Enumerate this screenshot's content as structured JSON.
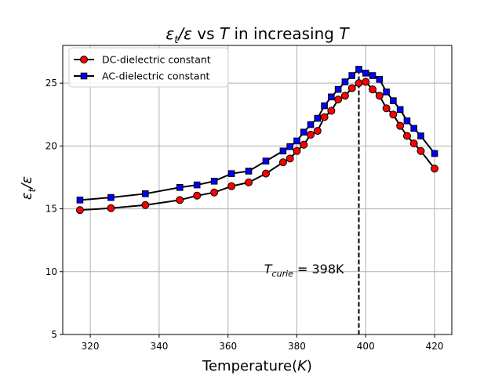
{
  "chart_data": {
    "type": "line",
    "title": "εt/ε vs T in increasing T",
    "xlabel": "Temperature(K)",
    "ylabel": "εt/ε",
    "xlim": [
      312,
      425
    ],
    "ylim": [
      5,
      28
    ],
    "grid": true,
    "legend_position": "top-left",
    "x_ticks": [
      320,
      340,
      360,
      380,
      400,
      420
    ],
    "y_ticks": [
      5,
      10,
      15,
      20,
      25
    ],
    "series": [
      {
        "name": "DC-dielectric constant",
        "color": "#ff0000",
        "marker": "circle",
        "x": [
          317,
          326,
          336,
          346,
          351,
          356,
          361,
          366,
          371,
          376,
          378,
          380,
          382,
          384,
          386,
          388,
          390,
          392,
          394,
          396,
          398,
          400,
          402,
          404,
          406,
          408,
          410,
          412,
          414,
          416,
          420
        ],
        "y": [
          14.9,
          15.05,
          15.3,
          15.7,
          16.05,
          16.3,
          16.8,
          17.1,
          17.8,
          18.7,
          19.0,
          19.6,
          20.1,
          20.9,
          21.2,
          22.3,
          22.8,
          23.7,
          24.0,
          24.6,
          25.0,
          25.1,
          24.5,
          24.0,
          23.0,
          22.5,
          21.6,
          20.8,
          20.2,
          19.6,
          18.2
        ]
      },
      {
        "name": "AC-dielectric constant",
        "color": "#0000ff",
        "marker": "square",
        "x": [
          317,
          326,
          336,
          346,
          351,
          356,
          361,
          366,
          371,
          376,
          378,
          380,
          382,
          384,
          386,
          388,
          390,
          392,
          394,
          396,
          398,
          400,
          402,
          404,
          406,
          408,
          410,
          412,
          414,
          416,
          420
        ],
        "y": [
          15.7,
          15.9,
          16.2,
          16.7,
          16.9,
          17.2,
          17.8,
          18.0,
          18.8,
          19.6,
          19.95,
          20.4,
          21.1,
          21.7,
          22.2,
          23.2,
          23.9,
          24.5,
          25.1,
          25.6,
          26.1,
          25.8,
          25.6,
          25.3,
          24.3,
          23.6,
          22.9,
          22.0,
          21.4,
          20.8,
          19.4
        ]
      }
    ],
    "vline": {
      "x": 398,
      "style": "dashed",
      "color": "#000000"
    },
    "annotation": {
      "text": "Tcurie = 398K",
      "x": 370.5,
      "y": 10.0
    }
  }
}
